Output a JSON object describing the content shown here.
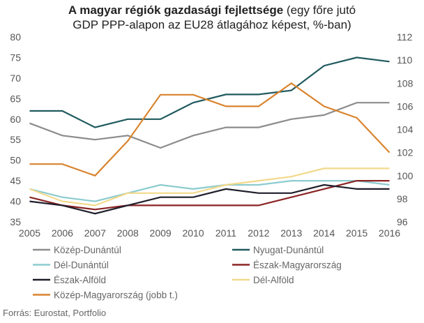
{
  "title_bold": "A magyar régiók gazdasági fejlettsége",
  "title_rest_line1": " (egy főre jutó",
  "title_line2": "GDP PPP-alapon az EU28 átlagához képest, %-ban)",
  "source": "Forrás: Eurostat, Portfolio",
  "chart_data": {
    "type": "line",
    "x": [
      2005,
      2006,
      2007,
      2008,
      2009,
      2010,
      2011,
      2012,
      2013,
      2014,
      2015,
      2016
    ],
    "ylim_left": [
      35,
      80
    ],
    "yticks_left": [
      35,
      40,
      45,
      50,
      55,
      60,
      65,
      70,
      75,
      80
    ],
    "ylim_right": [
      96,
      112
    ],
    "yticks_right": [
      96,
      98,
      100,
      102,
      104,
      106,
      108,
      110,
      112
    ],
    "grid": false,
    "legend_position": "bottom",
    "series": [
      {
        "name": "Közép-Dunántúl",
        "color": "#8c8c8c",
        "axis": "left",
        "values": [
          59,
          56,
          55,
          56,
          53,
          56,
          58,
          58,
          60,
          61,
          64,
          64
        ]
      },
      {
        "name": "Nyugat-Dunántúl",
        "color": "#1f5a5e",
        "axis": "left",
        "values": [
          62,
          62,
          58,
          60,
          60,
          64,
          66,
          66,
          67,
          73,
          75,
          74
        ]
      },
      {
        "name": "Dél-Dunántúl",
        "color": "#8ccbcf",
        "axis": "left",
        "values": [
          43,
          41,
          40,
          42,
          44,
          43,
          44,
          44,
          45,
          45,
          45,
          44
        ]
      },
      {
        "name": "Észak-Magyarország",
        "color": "#8b2323",
        "axis": "left",
        "values": [
          41,
          39,
          38,
          39,
          39,
          39,
          39,
          39,
          41,
          43,
          45,
          45
        ]
      },
      {
        "name": "Észak-Alföld",
        "color": "#1e1e2a",
        "axis": "left",
        "values": [
          40,
          39,
          37,
          39,
          41,
          41,
          43,
          42,
          42,
          44,
          43,
          43
        ]
      },
      {
        "name": "Dél-Alföld",
        "color": "#f2d98a",
        "axis": "left",
        "values": [
          43,
          40,
          39,
          42,
          42,
          42,
          44,
          45,
          46,
          48,
          48,
          48
        ]
      },
      {
        "name": "Közép-Magyarország (jobb t.)",
        "color": "#d9832e",
        "axis": "right",
        "values": [
          101,
          101,
          100,
          103,
          107,
          107,
          106,
          106,
          108,
          106,
          105,
          102
        ]
      }
    ]
  }
}
